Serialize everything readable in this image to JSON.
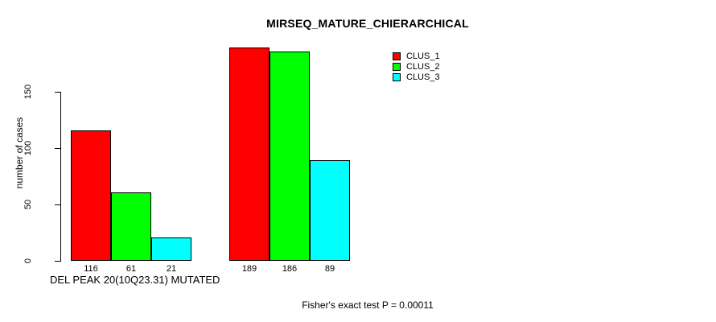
{
  "chart_data": {
    "type": "bar",
    "title": "MIRSEQ_MATURE_CHIERARCHICAL",
    "xlabel": "DEL PEAK 20(10Q23.31) MUTATED",
    "ylabel": "number of cases",
    "ylim": [
      0,
      150
    ],
    "yticks": [
      0,
      50,
      100,
      150
    ],
    "groups": [
      "group-1",
      "group-2"
    ],
    "series": [
      {
        "name": "CLUS_1",
        "color": "#ff0000",
        "values": [
          116,
          189
        ]
      },
      {
        "name": "CLUS_2",
        "color": "#00ff00",
        "values": [
          61,
          186
        ]
      },
      {
        "name": "CLUS_3",
        "color": "#00ffff",
        "values": [
          21,
          89
        ]
      }
    ],
    "bar_value_labels": [
      [
        116,
        61,
        21
      ],
      [
        189,
        186,
        89
      ]
    ],
    "legend_position": "top-right",
    "grid": false,
    "annotation": "Fisher's exact test P = 0.00011"
  }
}
